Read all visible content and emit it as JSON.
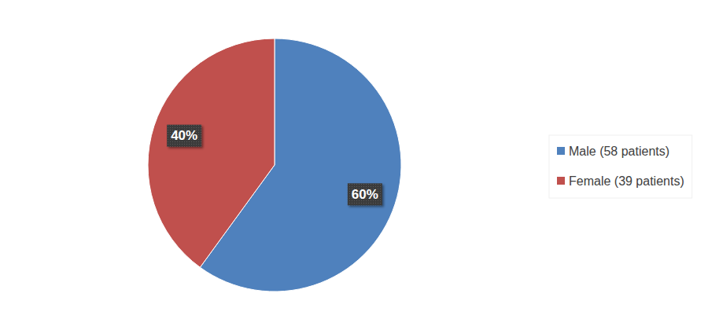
{
  "chart_data": {
    "type": "pie",
    "categories": [
      "Male (58 patients)",
      "Female (39 patients)"
    ],
    "values": [
      60,
      40
    ],
    "value_labels": [
      "60%",
      "40%"
    ],
    "colors": [
      "#4f81bd",
      "#c0504d"
    ],
    "data_labels": true,
    "legend": "right"
  }
}
